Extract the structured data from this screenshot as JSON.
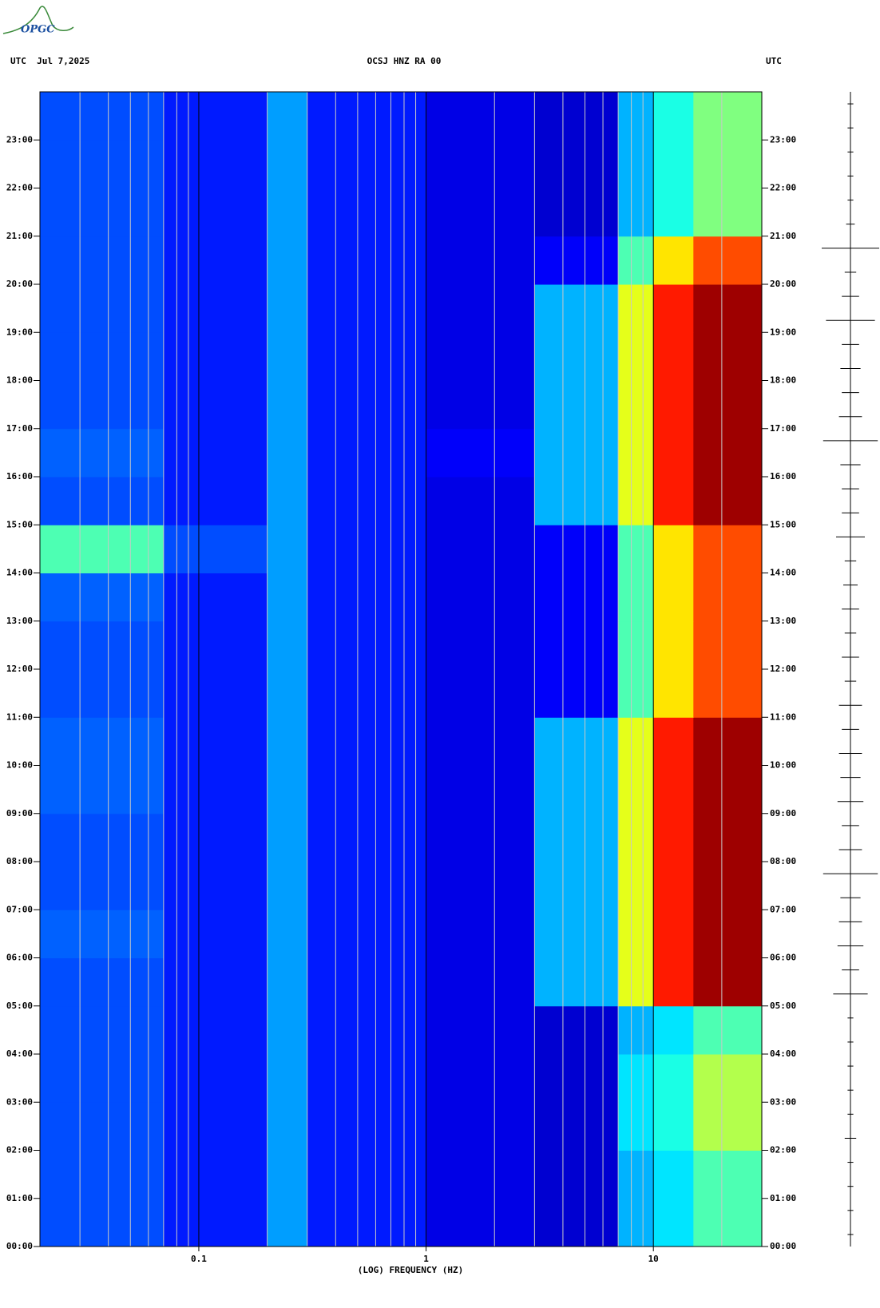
{
  "logo": "OPGC",
  "chart_data": [
    {
      "type": "spectrogram",
      "header_left": "UTC  Jul 7,2025",
      "title": "OCSJ HNZ RA 00",
      "header_right": "UTC",
      "xlabel": "(LOG) FREQUENCY (HZ)",
      "xscale": "log",
      "xlim": [
        0.02,
        30
      ],
      "xticks": [
        0.1,
        1,
        10
      ],
      "xminorticks": [
        0.03,
        0.04,
        0.05,
        0.06,
        0.07,
        0.08,
        0.09,
        0.2,
        0.3,
        0.4,
        0.5,
        0.6,
        0.7,
        0.8,
        0.9,
        2,
        3,
        4,
        5,
        6,
        7,
        8,
        9,
        20
      ],
      "ylim": [
        0,
        24
      ],
      "yticks": [
        {
          "value": 0,
          "label": "00:00"
        },
        {
          "value": 1,
          "label": "01:00"
        },
        {
          "value": 2,
          "label": "02:00"
        },
        {
          "value": 3,
          "label": "03:00"
        },
        {
          "value": 4,
          "label": "04:00"
        },
        {
          "value": 5,
          "label": "05:00"
        },
        {
          "value": 6,
          "label": "06:00"
        },
        {
          "value": 7,
          "label": "07:00"
        },
        {
          "value": 8,
          "label": "08:00"
        },
        {
          "value": 9,
          "label": "09:00"
        },
        {
          "value": 10,
          "label": "10:00"
        },
        {
          "value": 11,
          "label": "11:00"
        },
        {
          "value": 12,
          "label": "12:00"
        },
        {
          "value": 13,
          "label": "13:00"
        },
        {
          "value": 14,
          "label": "14:00"
        },
        {
          "value": 15,
          "label": "15:00"
        },
        {
          "value": 16,
          "label": "16:00"
        },
        {
          "value": 17,
          "label": "17:00"
        },
        {
          "value": 18,
          "label": "18:00"
        },
        {
          "value": 19,
          "label": "19:00"
        },
        {
          "value": 20,
          "label": "20:00"
        },
        {
          "value": 21,
          "label": "21:00"
        },
        {
          "value": 22,
          "label": "22:00"
        },
        {
          "value": 23,
          "label": "23:00"
        }
      ],
      "xbins": [
        0.02,
        0.07,
        0.2,
        0.3,
        1,
        3,
        7,
        10,
        15,
        30
      ],
      "ybins": [
        0,
        1,
        2,
        3,
        4,
        5,
        6,
        7,
        8,
        9,
        10,
        11,
        12,
        13,
        14,
        15,
        16,
        17,
        18,
        19,
        20,
        21,
        22,
        23,
        24
      ],
      "values": [
        [
          0.2,
          0.15,
          0.28,
          0.15,
          0.1,
          0.08,
          0.3,
          0.35,
          0.45
        ],
        [
          0.2,
          0.15,
          0.28,
          0.15,
          0.1,
          0.08,
          0.3,
          0.35,
          0.45
        ],
        [
          0.2,
          0.15,
          0.28,
          0.15,
          0.1,
          0.08,
          0.35,
          0.4,
          0.55
        ],
        [
          0.2,
          0.15,
          0.28,
          0.15,
          0.1,
          0.08,
          0.35,
          0.4,
          0.55
        ],
        [
          0.2,
          0.15,
          0.28,
          0.15,
          0.1,
          0.08,
          0.3,
          0.35,
          0.45
        ],
        [
          0.2,
          0.15,
          0.28,
          0.15,
          0.1,
          0.3,
          0.6,
          0.85,
          0.97
        ],
        [
          0.22,
          0.15,
          0.28,
          0.15,
          0.1,
          0.3,
          0.6,
          0.85,
          0.97
        ],
        [
          0.2,
          0.15,
          0.28,
          0.15,
          0.1,
          0.3,
          0.6,
          0.85,
          0.97
        ],
        [
          0.2,
          0.15,
          0.28,
          0.15,
          0.1,
          0.3,
          0.6,
          0.85,
          0.97
        ],
        [
          0.22,
          0.15,
          0.28,
          0.15,
          0.1,
          0.3,
          0.6,
          0.85,
          0.97
        ],
        [
          0.22,
          0.15,
          0.28,
          0.15,
          0.1,
          0.3,
          0.6,
          0.85,
          0.97
        ],
        [
          0.2,
          0.15,
          0.28,
          0.15,
          0.1,
          0.12,
          0.45,
          0.65,
          0.8
        ],
        [
          0.2,
          0.15,
          0.28,
          0.15,
          0.1,
          0.12,
          0.45,
          0.65,
          0.8
        ],
        [
          0.22,
          0.15,
          0.28,
          0.15,
          0.1,
          0.12,
          0.45,
          0.65,
          0.8
        ],
        [
          0.45,
          0.2,
          0.28,
          0.15,
          0.1,
          0.12,
          0.45,
          0.65,
          0.8
        ],
        [
          0.2,
          0.15,
          0.28,
          0.15,
          0.1,
          0.3,
          0.6,
          0.85,
          0.97
        ],
        [
          0.22,
          0.15,
          0.28,
          0.15,
          0.12,
          0.3,
          0.6,
          0.85,
          0.97
        ],
        [
          0.2,
          0.15,
          0.28,
          0.15,
          0.1,
          0.3,
          0.6,
          0.85,
          0.97
        ],
        [
          0.2,
          0.15,
          0.28,
          0.15,
          0.1,
          0.3,
          0.6,
          0.85,
          0.97
        ],
        [
          0.2,
          0.15,
          0.28,
          0.15,
          0.1,
          0.3,
          0.6,
          0.85,
          0.97
        ],
        [
          0.2,
          0.15,
          0.28,
          0.15,
          0.1,
          0.12,
          0.45,
          0.65,
          0.8
        ],
        [
          0.2,
          0.15,
          0.28,
          0.15,
          0.1,
          0.08,
          0.3,
          0.4,
          0.5
        ],
        [
          0.2,
          0.15,
          0.28,
          0.15,
          0.1,
          0.08,
          0.3,
          0.4,
          0.5
        ],
        [
          0.2,
          0.15,
          0.28,
          0.15,
          0.1,
          0.08,
          0.3,
          0.4,
          0.5
        ]
      ]
    },
    {
      "type": "trace",
      "ylim": [
        0,
        24
      ],
      "x": [
        0,
        0.5,
        1,
        1.5,
        2,
        2.5,
        3,
        3.5,
        4,
        4.5,
        5,
        5.5,
        6,
        6.5,
        7,
        7.5,
        8,
        8.5,
        9,
        9.5,
        10,
        10.5,
        11,
        11.5,
        12,
        12.5,
        13,
        13.5,
        14,
        14.5,
        15,
        15.5,
        16,
        16.5,
        17,
        17.5,
        18,
        18.5,
        19,
        19.5,
        20,
        20.5,
        21,
        21.5,
        22,
        22.5,
        23,
        23.5
      ],
      "values": [
        0.1,
        0.1,
        0.1,
        0.1,
        0.2,
        0.1,
        0.1,
        0.1,
        0.1,
        0.1,
        0.6,
        0.3,
        0.45,
        0.4,
        0.35,
        0.95,
        0.4,
        0.3,
        0.45,
        0.35,
        0.4,
        0.3,
        0.4,
        0.2,
        0.3,
        0.2,
        0.3,
        0.25,
        0.2,
        0.5,
        0.3,
        0.3,
        0.35,
        0.95,
        0.4,
        0.3,
        0.35,
        0.3,
        0.85,
        0.3,
        0.2,
        1.0,
        0.15,
        0.1,
        0.1,
        0.1,
        0.1,
        0.1
      ]
    }
  ]
}
